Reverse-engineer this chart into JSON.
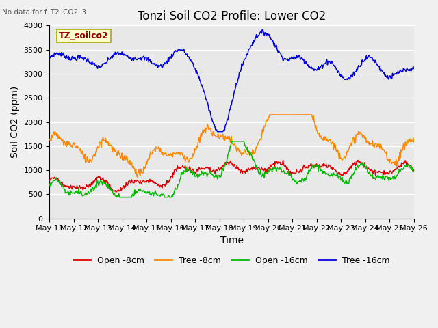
{
  "title": "Tonzi Soil CO2 Profile: Lower CO2",
  "subtitle": "No data for f_T2_CO2_3",
  "xlabel": "Time",
  "ylabel": "Soil CO2 (ppm)",
  "ylim": [
    0,
    4000
  ],
  "yticks": [
    0,
    500,
    1000,
    1500,
    2000,
    2500,
    3000,
    3500,
    4000
  ],
  "legend_label_box": "TZ_soilco2",
  "series": {
    "open_8cm": {
      "label": "Open -8cm",
      "color": "#dd0000"
    },
    "tree_8cm": {
      "label": "Tree -8cm",
      "color": "#ff8800"
    },
    "open_16cm": {
      "label": "Open -16cm",
      "color": "#00bb00"
    },
    "tree_16cm": {
      "label": "Tree -16cm",
      "color": "#0000dd"
    }
  },
  "xtick_labels": [
    "May 11",
    "May 12",
    "May 13",
    "May 14",
    "May 15",
    "May 16",
    "May 17",
    "May 18",
    "May 19",
    "May 20",
    "May 21",
    "May 22",
    "May 23",
    "May 24",
    "May 25",
    "May 26"
  ],
  "background_color": "#e8e8e8",
  "grid_color": "#ffffff",
  "fig_bg": "#f0f0f0",
  "title_fontsize": 12,
  "axis_label_fontsize": 10,
  "tick_fontsize": 8,
  "legend_fontsize": 9
}
